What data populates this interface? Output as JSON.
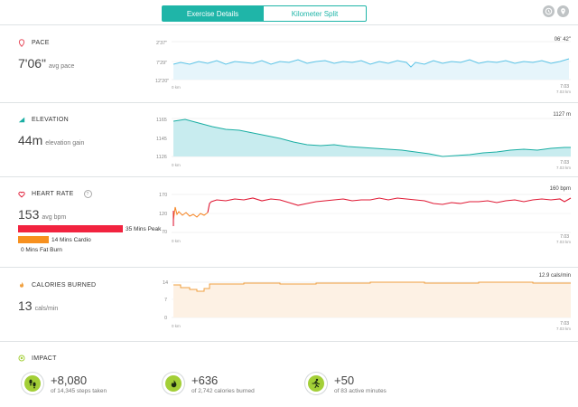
{
  "tabs": {
    "active": "Exercise Details",
    "inactive": "Kilometer Split"
  },
  "top_icons": [
    "clock-icon",
    "location-pin-icon"
  ],
  "colors": {
    "teal": "#1fb5a8",
    "pace": "#5bc3e6",
    "elevation": "#1aaea3",
    "heart": "#e01a35",
    "heart_warmup": "#f58220",
    "calories": "#f0a040",
    "impact_green": "#a3cf37",
    "peak_zone": "#f2233f",
    "cardio_zone": "#f7901e"
  },
  "pace": {
    "label": "PACE",
    "value": "7'06\"",
    "unit": "avg pace",
    "y_top": "2'37\"",
    "y_mid": "7'29\"",
    "y_bot": "12'20\"",
    "x_start": "0 km",
    "x_end_value": "7.03",
    "x_end_unit": "7.03 km",
    "marker": "06' 42\""
  },
  "elevation": {
    "label": "ELEVATION",
    "value": "44m",
    "unit": "elevation gain",
    "y_top": "1165",
    "y_mid": "1145",
    "y_bot": "1126",
    "x_start": "0 km",
    "x_end_value": "7.03",
    "x_end_unit": "7.03 km",
    "marker": "1127 m"
  },
  "heart": {
    "label": "HEART RATE",
    "info": "?",
    "value": "153",
    "unit": "avg bpm",
    "y_top": "170",
    "y_mid": "120",
    "y_bot": "70",
    "x_start": "0 km",
    "x_end_value": "7.03",
    "x_end_unit": "7.03 km",
    "marker": "160 bpm",
    "zones": [
      {
        "label": "35 Mins Peak",
        "fraction": 1.0
      },
      {
        "label": "14 Mins Cardio",
        "fraction": 0.4
      },
      {
        "label": "0 Mins Fat Burn",
        "fraction": 0
      }
    ]
  },
  "calories": {
    "label": "CALORIES BURNED",
    "value": "13",
    "unit": "cals/min",
    "y_top": "14",
    "y_mid": "7",
    "y_bot": "0",
    "x_start": "0 km",
    "x_end_value": "7.03",
    "x_end_unit": "7.03 km",
    "marker": "12.9 cals/min"
  },
  "impact": {
    "label": "IMPACT",
    "items": [
      {
        "value": "+8,080",
        "desc": "of 14,345 steps taken",
        "icon": "footsteps-icon"
      },
      {
        "value": "+636",
        "desc": "of 2,742 calories burned",
        "icon": "flame-icon"
      },
      {
        "value": "+50",
        "desc": "of 83 active minutes",
        "icon": "runner-icon"
      }
    ]
  }
}
